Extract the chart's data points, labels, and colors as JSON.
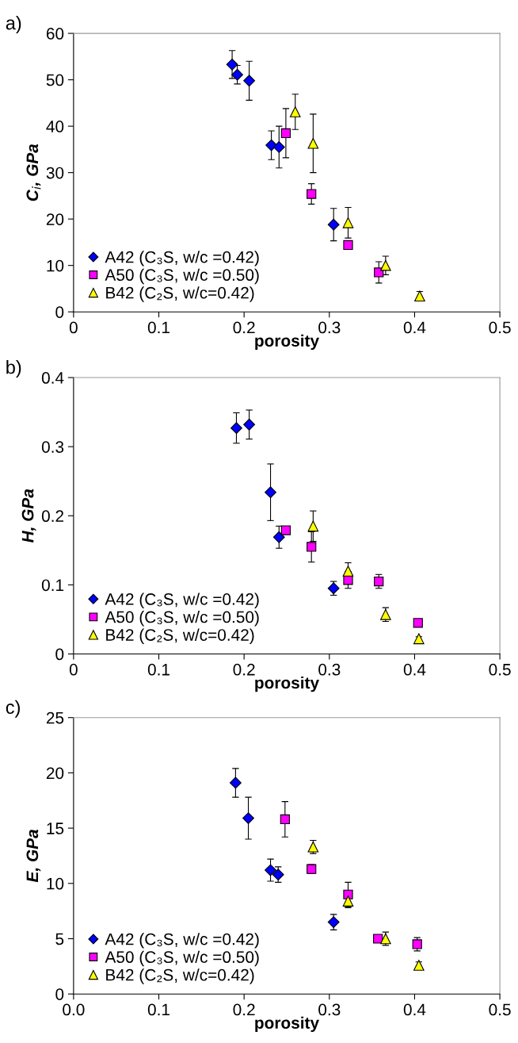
{
  "chart_data": [
    {
      "type": "scatter",
      "xlabel": "porosity",
      "ylabel": "C$_{i}$, GPa",
      "annotations": [
        "a)"
      ],
      "xlim": [
        0,
        0.5
      ],
      "ylim": [
        0,
        60
      ],
      "xticks": [
        0,
        0.1,
        0.2,
        0.3,
        0.4,
        0.5
      ],
      "yticks": [
        0,
        10,
        20,
        30,
        40,
        50,
        60
      ],
      "grid": false,
      "legend": "bottom left",
      "series": [
        {
          "name": "A42 (C₃S, w/c =0.42)",
          "color": "#0000ff",
          "marker": "diamond",
          "x": [
            0.186,
            0.192,
            0.206,
            0.232,
            0.241,
            0.305
          ],
          "values": [
            53.3,
            51.1,
            49.8,
            35.9,
            35.5,
            18.8
          ],
          "errors": [
            3,
            2,
            4.2,
            3.1,
            4.5,
            3.5
          ]
        },
        {
          "name": "A50 (C₃S, w/c =0.50)",
          "color": "#ff00ff",
          "marker": "square",
          "x": [
            0.249,
            0.279,
            0.322,
            0.358
          ],
          "values": [
            38.5,
            25.4,
            14.4,
            8.5
          ],
          "errors": [
            5.3,
            2.2,
            null,
            2.3
          ]
        },
        {
          "name": "B42 (C₂S, w/c=0.42)",
          "color": "#ffff00",
          "marker": "triangle",
          "x": [
            0.26,
            0.281,
            0.322,
            0.366,
            0.406
          ],
          "values": [
            43.1,
            36.3,
            19.2,
            10,
            3.4
          ],
          "errors": [
            3.8,
            6.3,
            3.3,
            2,
            1
          ]
        }
      ]
    },
    {
      "type": "scatter",
      "xlabel": "porosity",
      "ylabel": "H, GPa",
      "annotations": [
        "b)"
      ],
      "xlim": [
        0,
        0.5
      ],
      "ylim": [
        0,
        0.4
      ],
      "xticks": [
        0,
        0.1,
        0.2,
        0.3,
        0.4,
        0.5
      ],
      "yticks": [
        0,
        0.1,
        0.2,
        0.3,
        0.4
      ],
      "grid": false,
      "legend": "bottom left",
      "series": [
        {
          "name": "A42 (C₃S, w/c =0.42)",
          "color": "#0000ff",
          "marker": "diamond",
          "x": [
            0.191,
            0.206,
            0.231,
            0.241,
            0.305
          ],
          "values": [
            0.327,
            0.332,
            0.234,
            0.169,
            0.095
          ],
          "errors": [
            0.022,
            0.021,
            0.041,
            0.016,
            0.01
          ]
        },
        {
          "name": "A50 (C₃S, w/c =0.50)",
          "color": "#ff00ff",
          "marker": "square",
          "x": [
            0.249,
            0.279,
            0.322,
            0.358,
            0.404
          ],
          "values": [
            0.179,
            0.155,
            0.107,
            0.105,
            0.045
          ],
          "errors": [
            null,
            0.022,
            0.012,
            0.01,
            null
          ]
        },
        {
          "name": "B42 (C₂S, w/c=0.42)",
          "color": "#ffff00",
          "marker": "triangle",
          "x": [
            0.281,
            0.322,
            0.366,
            0.405
          ],
          "values": [
            0.185,
            0.12,
            0.057,
            0.022
          ],
          "errors": [
            0.022,
            0.012,
            0.01,
            0.003
          ]
        }
      ]
    },
    {
      "type": "scatter",
      "xlabel": "porosity",
      "ylabel": "E, GPa",
      "annotations": [
        "c)"
      ],
      "xlim": [
        0,
        0.5
      ],
      "ylim": [
        0,
        25
      ],
      "xticks": [
        {
          "value": 0,
          "label": "0.0"
        },
        0.1,
        0.2,
        0.3,
        0.4,
        0.5
      ],
      "yticks": [
        0,
        5,
        10,
        15,
        20,
        25
      ],
      "grid": false,
      "legend": "bottom left",
      "series": [
        {
          "name": "A42 (C₃S, w/c =0.42)",
          "color": "#0000ff",
          "marker": "diamond",
          "x": [
            0.19,
            0.205,
            0.231,
            0.24,
            0.305
          ],
          "values": [
            19.1,
            15.9,
            11.2,
            10.8,
            6.5
          ],
          "errors": [
            1.3,
            1.9,
            1,
            0.7,
            0.7
          ]
        },
        {
          "name": "A50 (C₃S, w/c =0.50)",
          "color": "#ff00ff",
          "marker": "square",
          "x": [
            0.248,
            0.279,
            0.322,
            0.357,
            0.403
          ],
          "values": [
            15.8,
            11.3,
            9,
            5,
            4.5
          ],
          "errors": [
            1.6,
            0.4,
            1.1,
            0.3,
            0.6
          ]
        },
        {
          "name": "B42 (C₂S, w/c=0.42)",
          "color": "#ffff00",
          "marker": "triangle",
          "x": [
            0.281,
            0.322,
            0.366,
            0.405
          ],
          "values": [
            13.3,
            8.4,
            5,
            2.6
          ],
          "errors": [
            0.6,
            0.6,
            0.6,
            0.3
          ]
        }
      ]
    }
  ]
}
